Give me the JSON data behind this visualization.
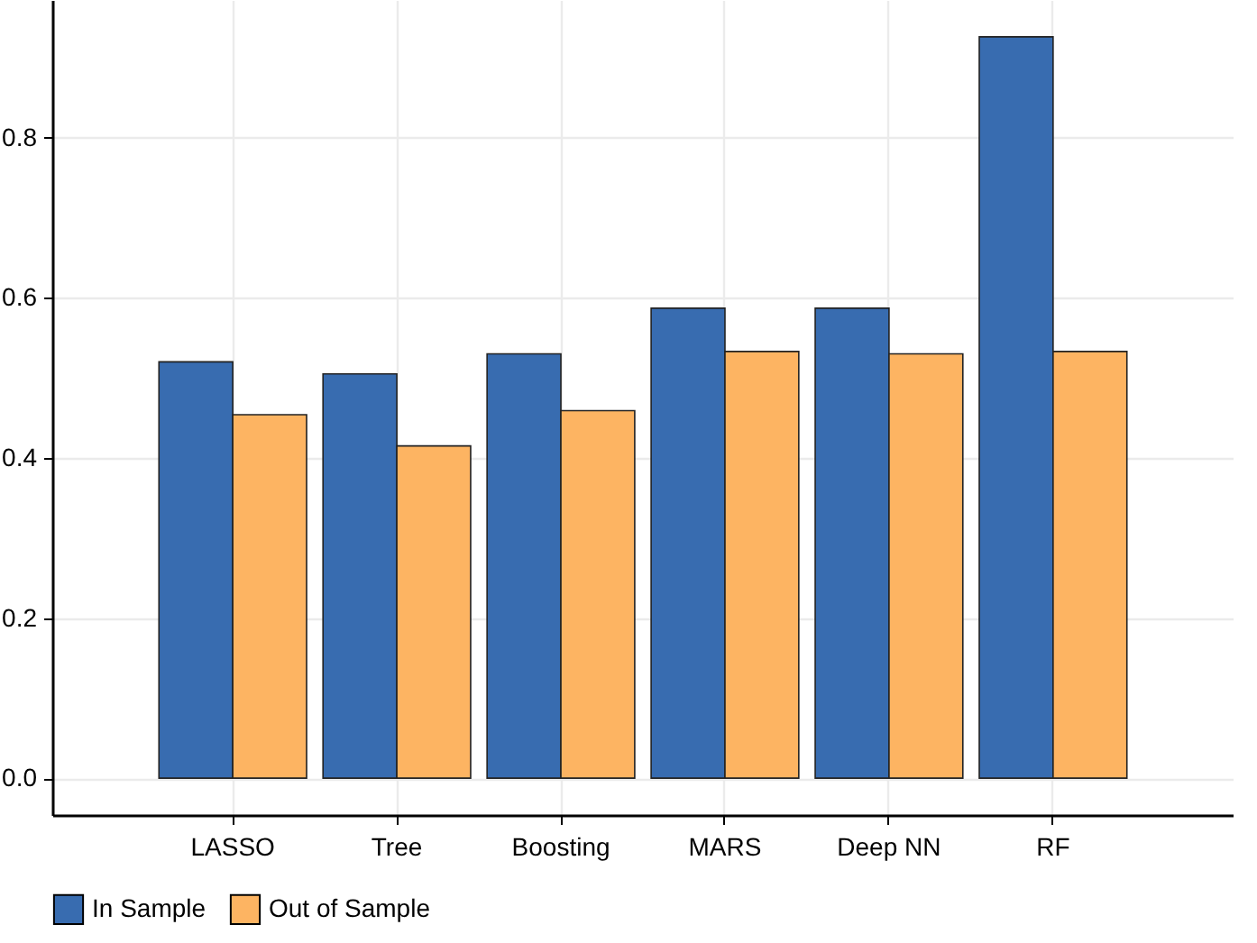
{
  "chart_data": {
    "type": "bar",
    "categories": [
      "LASSO",
      "Tree",
      "Boosting",
      "MARS",
      "Deep NN",
      "RF"
    ],
    "series": [
      {
        "name": "In Sample",
        "color": "#386cb0",
        "values": [
          0.52,
          0.505,
          0.53,
          0.587,
          0.587,
          0.926
        ]
      },
      {
        "name": "Out of Sample",
        "color": "#fdb462",
        "values": [
          0.454,
          0.415,
          0.459,
          0.533,
          0.53,
          0.533
        ]
      }
    ],
    "ylim": [
      -0.046,
      0.972
    ],
    "yticks": [
      {
        "value": 0,
        "label": "0.0"
      },
      0.2,
      0.4,
      0.6,
      0.8
    ],
    "grid": true,
    "legend": "bottom"
  }
}
